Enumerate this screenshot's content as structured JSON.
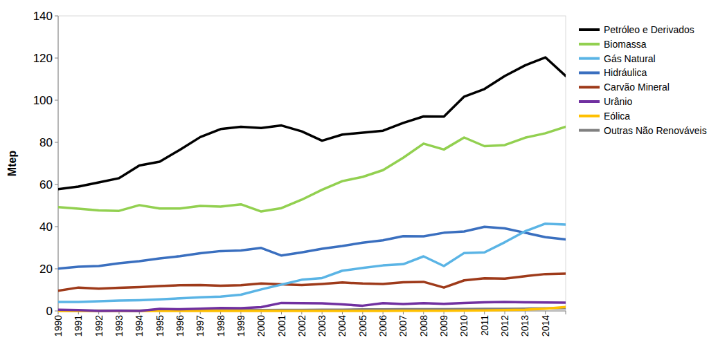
{
  "chart_data": {
    "type": "line",
    "y_label": "Mtep",
    "categories": [
      "1990",
      "1991",
      "1992",
      "1993",
      "1994",
      "1995",
      "1996",
      "1997",
      "1998",
      "1999",
      "2000",
      "2001",
      "2002",
      "2003",
      "2004",
      "2005",
      "2006",
      "2007",
      "2008",
      "2009",
      "2010",
      "2011",
      "2012",
      "2013",
      "2014",
      null
    ],
    "ylim": [
      0,
      140
    ],
    "yticks": [
      0,
      20,
      40,
      60,
      80,
      100,
      120,
      140
    ],
    "grid": false,
    "legend": "right",
    "series": [
      {
        "name": "Petróleo e Derivados",
        "color": "#000000",
        "values": [
          57.8,
          59,
          61,
          63,
          69,
          70.8,
          76.5,
          82.5,
          86.3,
          87.4,
          86.8,
          88,
          85.2,
          80.8,
          83.7,
          84.6,
          85.5,
          89.2,
          92.3,
          92.2,
          101.7,
          105.3,
          111.5,
          116.5,
          120.3,
          111.5
        ]
      },
      {
        "name": "Biomassa",
        "color": "#92d050",
        "values": [
          49.3,
          48.5,
          47.7,
          47.5,
          50.2,
          48.6,
          48.6,
          49.8,
          49.5,
          50.6,
          47.2,
          48.8,
          52.8,
          57.5,
          61.6,
          63.6,
          66.8,
          72.7,
          79.4,
          76.6,
          82.3,
          78.2,
          78.7,
          82.2,
          84.3,
          87.4
        ]
      },
      {
        "name": "Gás Natural",
        "color": "#5ab4e5",
        "values": [
          4.3,
          4.3,
          4.6,
          4.9,
          5.1,
          5.5,
          6.0,
          6.5,
          6.8,
          7.7,
          10.2,
          12.5,
          14.8,
          15.6,
          19.1,
          20.4,
          21.6,
          22.2,
          25.9,
          21.3,
          27.5,
          27.8,
          32.6,
          37.8,
          41.4,
          41.0
        ]
      },
      {
        "name": "Hidráulica",
        "color": "#3a6fbf",
        "values": [
          20.1,
          21.0,
          21.3,
          22.6,
          23.6,
          24.9,
          26.0,
          27.4,
          28.4,
          28.7,
          29.9,
          26.3,
          27.8,
          29.5,
          30.8,
          32.4,
          33.5,
          35.5,
          35.4,
          37.1,
          37.7,
          39.9,
          39.2,
          37.1,
          35.0,
          33.9
        ]
      },
      {
        "name": "Carvão Mineral",
        "color": "#9e3a1a",
        "values": [
          9.6,
          11.1,
          10.6,
          11.0,
          11.3,
          11.8,
          12.2,
          12.3,
          12.0,
          12.2,
          13.0,
          12.6,
          12.3,
          12.8,
          13.5,
          13.0,
          12.8,
          13.6,
          13.8,
          11.1,
          14.5,
          15.5,
          15.3,
          16.5,
          17.5,
          17.7
        ]
      },
      {
        "name": "Urânio",
        "color": "#7030a0",
        "values": [
          0.6,
          0.4,
          0.0,
          0.1,
          0.0,
          1.0,
          0.8,
          1.1,
          1.4,
          1.3,
          1.8,
          3.8,
          3.7,
          3.6,
          3.1,
          2.5,
          3.7,
          3.3,
          3.7,
          3.4,
          3.8,
          4.1,
          4.3,
          4.1,
          4.0,
          3.9
        ]
      },
      {
        "name": "Eólica",
        "color": "#ffc000",
        "values": [
          0,
          0,
          0,
          0,
          0,
          0,
          0,
          0,
          0,
          0,
          0,
          0,
          0,
          0,
          0.01,
          0.01,
          0.02,
          0.05,
          0.05,
          0.1,
          0.2,
          0.23,
          0.43,
          0.57,
          1.05,
          1.85
        ]
      },
      {
        "name": "Outras Não Renováveis",
        "color": "#808080",
        "values": [
          0.2,
          0.2,
          0.2,
          0.2,
          0.2,
          0.3,
          0.3,
          0.3,
          0.3,
          0.4,
          0.4,
          0.5,
          0.5,
          0.6,
          0.6,
          0.7,
          0.7,
          0.8,
          0.8,
          0.8,
          0.9,
          1.0,
          1.0,
          1.1,
          1.2,
          1.3
        ]
      }
    ]
  }
}
